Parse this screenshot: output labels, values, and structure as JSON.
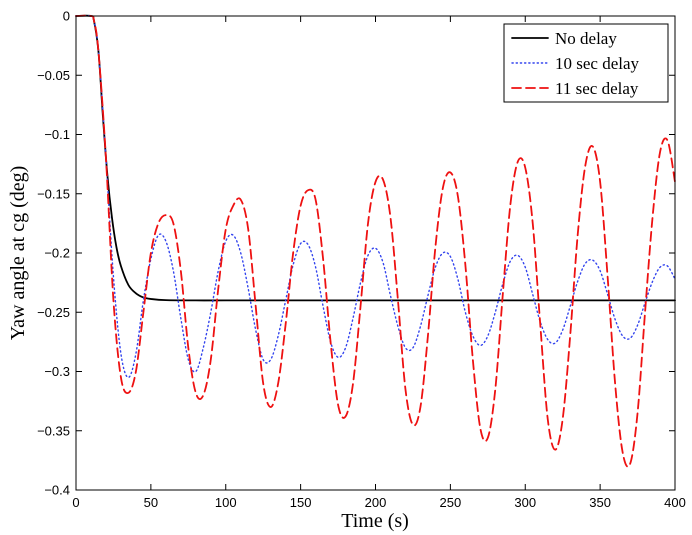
{
  "chart_data": {
    "type": "line",
    "title": "",
    "xlabel": "Time (s)",
    "ylabel": "Yaw angle at cg (deg)",
    "xlim": [
      0,
      400
    ],
    "ylim": [
      -0.4,
      0
    ],
    "xticks": [
      0,
      50,
      100,
      150,
      200,
      250,
      300,
      350,
      400
    ],
    "yticks": [
      0,
      -0.05,
      -0.1,
      -0.15,
      -0.2,
      -0.25,
      -0.3,
      -0.35,
      -0.4
    ],
    "xtick_labels": [
      "0",
      "50",
      "100",
      "150",
      "200",
      "250",
      "300",
      "350",
      "400"
    ],
    "ytick_labels": [
      "0",
      "−0.05",
      "−0.1",
      "−0.15",
      "−0.2",
      "−0.25",
      "−0.3",
      "−0.35",
      "−0.4"
    ],
    "grid": false,
    "legend_position": "top-right",
    "series": [
      {
        "name": "No delay",
        "color": "#000000",
        "style": "solid",
        "x": [
          0,
          10,
          12,
          15,
          18,
          21,
          24,
          27,
          30,
          35,
          40,
          45,
          50,
          60,
          80,
          100,
          150,
          200,
          250,
          300,
          350,
          400
        ],
        "y": [
          0,
          0,
          -0.004,
          -0.03,
          -0.085,
          -0.135,
          -0.17,
          -0.195,
          -0.211,
          -0.227,
          -0.234,
          -0.2375,
          -0.2388,
          -0.2398,
          -0.24,
          -0.24,
          -0.24,
          -0.24,
          -0.24,
          -0.24,
          -0.24,
          -0.24
        ]
      },
      {
        "name": "10 sec delay",
        "color": "#3344ee",
        "style": "dotted",
        "x": [
          0,
          10,
          12,
          15,
          20,
          25,
          30,
          35,
          40,
          45,
          50,
          55,
          60,
          65,
          70,
          75,
          80,
          85,
          90,
          95,
          100,
          105,
          110,
          115,
          120,
          125,
          130,
          135,
          140,
          145,
          150,
          155,
          160,
          165,
          170,
          175,
          180,
          185,
          190,
          195,
          200,
          205,
          210,
          215,
          220,
          225,
          230,
          235,
          240,
          245,
          250,
          255,
          260,
          265,
          270,
          275,
          280,
          285,
          290,
          295,
          300,
          305,
          310,
          315,
          320,
          325,
          330,
          335,
          340,
          345,
          350,
          355,
          360,
          365,
          370,
          375,
          380,
          385,
          390,
          395,
          400
        ],
        "y": [
          0,
          0,
          -0.004,
          -0.03,
          -0.12,
          -0.22,
          -0.285,
          -0.305,
          -0.285,
          -0.24,
          -0.205,
          -0.185,
          -0.19,
          -0.215,
          -0.255,
          -0.29,
          -0.3,
          -0.28,
          -0.25,
          -0.215,
          -0.19,
          -0.185,
          -0.2,
          -0.23,
          -0.265,
          -0.29,
          -0.29,
          -0.27,
          -0.24,
          -0.21,
          -0.192,
          -0.193,
          -0.212,
          -0.245,
          -0.275,
          -0.288,
          -0.28,
          -0.255,
          -0.225,
          -0.202,
          -0.196,
          -0.208,
          -0.236,
          -0.262,
          -0.28,
          -0.28,
          -0.262,
          -0.236,
          -0.212,
          -0.2,
          -0.203,
          -0.222,
          -0.25,
          -0.27,
          -0.278,
          -0.27,
          -0.25,
          -0.226,
          -0.207,
          -0.202,
          -0.212,
          -0.235,
          -0.258,
          -0.273,
          -0.276,
          -0.265,
          -0.245,
          -0.224,
          -0.209,
          -0.206,
          -0.215,
          -0.235,
          -0.256,
          -0.27,
          -0.272,
          -0.261,
          -0.242,
          -0.224,
          -0.212,
          -0.211,
          -0.222
        ]
      },
      {
        "name": "11 sec delay",
        "color": "#ee1111",
        "style": "dashed",
        "x": [
          0,
          10,
          12,
          15,
          20,
          25,
          30,
          35,
          40,
          45,
          50,
          55,
          60,
          65,
          70,
          75,
          80,
          85,
          90,
          95,
          100,
          105,
          110,
          115,
          120,
          125,
          130,
          135,
          140,
          145,
          150,
          155,
          160,
          165,
          170,
          175,
          180,
          185,
          190,
          195,
          200,
          205,
          210,
          215,
          220,
          225,
          230,
          235,
          240,
          245,
          250,
          255,
          260,
          265,
          270,
          275,
          280,
          285,
          290,
          295,
          300,
          305,
          310,
          315,
          320,
          325,
          330,
          335,
          340,
          345,
          350,
          355,
          360,
          365,
          370,
          375,
          380,
          385,
          390,
          395,
          400
        ],
        "y": [
          0,
          0,
          -0.004,
          -0.03,
          -0.12,
          -0.24,
          -0.305,
          -0.318,
          -0.3,
          -0.25,
          -0.2,
          -0.175,
          -0.168,
          -0.175,
          -0.215,
          -0.28,
          -0.318,
          -0.32,
          -0.29,
          -0.23,
          -0.18,
          -0.16,
          -0.155,
          -0.18,
          -0.245,
          -0.31,
          -0.33,
          -0.31,
          -0.26,
          -0.2,
          -0.16,
          -0.147,
          -0.155,
          -0.205,
          -0.275,
          -0.328,
          -0.338,
          -0.31,
          -0.245,
          -0.175,
          -0.14,
          -0.138,
          -0.17,
          -0.24,
          -0.315,
          -0.345,
          -0.33,
          -0.27,
          -0.195,
          -0.145,
          -0.132,
          -0.152,
          -0.21,
          -0.29,
          -0.348,
          -0.356,
          -0.315,
          -0.235,
          -0.16,
          -0.123,
          -0.128,
          -0.175,
          -0.26,
          -0.34,
          -0.366,
          -0.34,
          -0.27,
          -0.185,
          -0.127,
          -0.11,
          -0.14,
          -0.22,
          -0.31,
          -0.368,
          -0.378,
          -0.335,
          -0.25,
          -0.17,
          -0.115,
          -0.105,
          -0.14
        ]
      }
    ]
  }
}
